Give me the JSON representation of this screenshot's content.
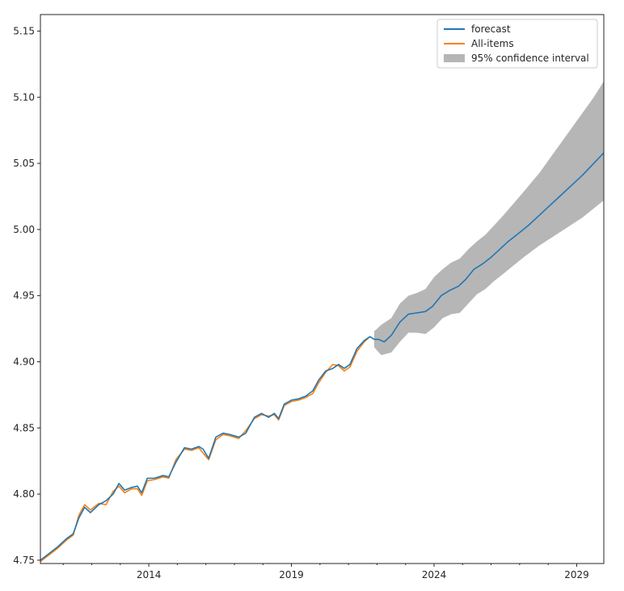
{
  "chart_data": {
    "type": "line",
    "title": "",
    "xlabel": "",
    "ylabel": "",
    "xlim": [
      2010.2,
      2029.95
    ],
    "ylim": [
      4.7475,
      5.1625
    ],
    "x_ticks": [
      {
        "value": 2014,
        "label": "2014"
      },
      {
        "value": 2019,
        "label": "2019"
      },
      {
        "value": 2024,
        "label": "2024"
      },
      {
        "value": 2029,
        "label": "2029"
      }
    ],
    "y_ticks": [
      {
        "value": 4.75,
        "label": "4.75"
      },
      {
        "value": 4.8,
        "label": "4.80"
      },
      {
        "value": 4.85,
        "label": "4.85"
      },
      {
        "value": 4.9,
        "label": "4.90"
      },
      {
        "value": 4.95,
        "label": "4.95"
      },
      {
        "value": 5.0,
        "label": "5.00"
      },
      {
        "value": 5.05,
        "label": "5.05"
      },
      {
        "value": 5.1,
        "label": "5.10"
      },
      {
        "value": 5.15,
        "label": "5.15"
      }
    ],
    "legend_position": "top-right",
    "legend": [
      {
        "label": "forecast",
        "kind": "line",
        "color": "#1f77b4"
      },
      {
        "label": "All-items",
        "kind": "line",
        "color": "#ff7f0e"
      },
      {
        "label": "95% confidence interval",
        "kind": "patch",
        "color": "#a9a9a9"
      }
    ],
    "series": [
      {
        "name": "forecast",
        "color": "#1f77b4",
        "points": [
          [
            2010.2,
            4.75
          ],
          [
            2010.5,
            4.755
          ],
          [
            2010.8,
            4.76
          ],
          [
            2011.1,
            4.766
          ],
          [
            2011.35,
            4.77
          ],
          [
            2011.55,
            4.782
          ],
          [
            2011.75,
            4.79
          ],
          [
            2011.95,
            4.786
          ],
          [
            2012.25,
            4.792
          ],
          [
            2012.5,
            4.795
          ],
          [
            2012.75,
            4.8
          ],
          [
            2012.95,
            4.808
          ],
          [
            2013.15,
            4.803
          ],
          [
            2013.4,
            4.805
          ],
          [
            2013.6,
            4.806
          ],
          [
            2013.75,
            4.801
          ],
          [
            2013.95,
            4.812
          ],
          [
            2014.2,
            4.812
          ],
          [
            2014.5,
            4.814
          ],
          [
            2014.7,
            4.813
          ],
          [
            2014.95,
            4.824
          ],
          [
            2015.25,
            4.835
          ],
          [
            2015.5,
            4.834
          ],
          [
            2015.75,
            4.836
          ],
          [
            2015.9,
            4.834
          ],
          [
            2016.1,
            4.827
          ],
          [
            2016.35,
            4.843
          ],
          [
            2016.6,
            4.846
          ],
          [
            2016.85,
            4.845
          ],
          [
            2017.15,
            4.843
          ],
          [
            2017.4,
            4.846
          ],
          [
            2017.7,
            4.858
          ],
          [
            2017.95,
            4.861
          ],
          [
            2018.2,
            4.858
          ],
          [
            2018.4,
            4.861
          ],
          [
            2018.55,
            4.857
          ],
          [
            2018.75,
            4.868
          ],
          [
            2019.0,
            4.871
          ],
          [
            2019.25,
            4.872
          ],
          [
            2019.5,
            4.874
          ],
          [
            2019.75,
            4.878
          ],
          [
            2019.95,
            4.886
          ],
          [
            2020.2,
            4.893
          ],
          [
            2020.45,
            4.895
          ],
          [
            2020.65,
            4.898
          ],
          [
            2020.85,
            4.895
          ],
          [
            2021.05,
            4.898
          ],
          [
            2021.3,
            4.91
          ],
          [
            2021.55,
            4.916
          ],
          [
            2021.75,
            4.919
          ],
          [
            2021.9,
            4.917
          ],
          [
            2022.05,
            4.917
          ],
          [
            2022.25,
            4.915
          ],
          [
            2022.5,
            4.92
          ],
          [
            2022.8,
            4.93
          ],
          [
            2023.1,
            4.936
          ],
          [
            2023.4,
            4.937
          ],
          [
            2023.7,
            4.938
          ],
          [
            2023.95,
            4.942
          ],
          [
            2024.25,
            4.95
          ],
          [
            2024.55,
            4.954
          ],
          [
            2024.85,
            4.957
          ],
          [
            2025.1,
            4.962
          ],
          [
            2025.4,
            4.97
          ],
          [
            2025.7,
            4.974
          ],
          [
            2026.0,
            4.979
          ],
          [
            2026.3,
            4.985
          ],
          [
            2026.6,
            4.991
          ],
          [
            2026.9,
            4.996
          ],
          [
            2027.3,
            5.003
          ],
          [
            2027.7,
            5.011
          ],
          [
            2028.0,
            5.017
          ],
          [
            2028.4,
            5.025
          ],
          [
            2028.8,
            5.033
          ],
          [
            2029.2,
            5.041
          ],
          [
            2029.6,
            5.05
          ],
          [
            2029.95,
            5.058
          ]
        ]
      },
      {
        "name": "All-items",
        "color": "#ff7f0e",
        "points": [
          [
            2010.2,
            4.749
          ],
          [
            2010.5,
            4.754
          ],
          [
            2010.8,
            4.759
          ],
          [
            2011.1,
            4.765
          ],
          [
            2011.35,
            4.769
          ],
          [
            2011.55,
            4.784
          ],
          [
            2011.75,
            4.792
          ],
          [
            2011.95,
            4.788
          ],
          [
            2012.25,
            4.793
          ],
          [
            2012.5,
            4.792
          ],
          [
            2012.75,
            4.802
          ],
          [
            2012.95,
            4.806
          ],
          [
            2013.15,
            4.801
          ],
          [
            2013.4,
            4.804
          ],
          [
            2013.6,
            4.804
          ],
          [
            2013.75,
            4.799
          ],
          [
            2013.95,
            4.81
          ],
          [
            2014.2,
            4.811
          ],
          [
            2014.5,
            4.813
          ],
          [
            2014.7,
            4.812
          ],
          [
            2014.95,
            4.826
          ],
          [
            2015.25,
            4.834
          ],
          [
            2015.5,
            4.833
          ],
          [
            2015.75,
            4.835
          ],
          [
            2015.9,
            4.831
          ],
          [
            2016.1,
            4.826
          ],
          [
            2016.35,
            4.841
          ],
          [
            2016.6,
            4.845
          ],
          [
            2016.85,
            4.844
          ],
          [
            2017.15,
            4.842
          ],
          [
            2017.4,
            4.848
          ],
          [
            2017.7,
            4.857
          ],
          [
            2017.95,
            4.86
          ],
          [
            2018.2,
            4.859
          ],
          [
            2018.4,
            4.86
          ],
          [
            2018.55,
            4.856
          ],
          [
            2018.75,
            4.867
          ],
          [
            2019.0,
            4.87
          ],
          [
            2019.25,
            4.871
          ],
          [
            2019.5,
            4.873
          ],
          [
            2019.75,
            4.876
          ],
          [
            2019.95,
            4.884
          ],
          [
            2020.2,
            4.892
          ],
          [
            2020.45,
            4.898
          ],
          [
            2020.65,
            4.897
          ],
          [
            2020.85,
            4.893
          ],
          [
            2021.05,
            4.896
          ],
          [
            2021.3,
            4.908
          ],
          [
            2021.55,
            4.915
          ],
          [
            2021.75,
            4.919
          ]
        ]
      }
    ],
    "confidence_interval": {
      "label": "95% confidence interval",
      "color": "#a9a9a9",
      "upper": [
        [
          2021.9,
          4.923
        ],
        [
          2022.15,
          4.928
        ],
        [
          2022.5,
          4.933
        ],
        [
          2022.8,
          4.944
        ],
        [
          2023.1,
          4.95
        ],
        [
          2023.4,
          4.952
        ],
        [
          2023.7,
          4.955
        ],
        [
          2024.0,
          4.964
        ],
        [
          2024.3,
          4.97
        ],
        [
          2024.6,
          4.975
        ],
        [
          2024.9,
          4.978
        ],
        [
          2025.2,
          4.985
        ],
        [
          2025.5,
          4.991
        ],
        [
          2025.8,
          4.996
        ],
        [
          2026.1,
          5.003
        ],
        [
          2026.4,
          5.01
        ],
        [
          2026.8,
          5.02
        ],
        [
          2027.2,
          5.03
        ],
        [
          2027.7,
          5.043
        ],
        [
          2028.2,
          5.058
        ],
        [
          2028.7,
          5.073
        ],
        [
          2029.2,
          5.088
        ],
        [
          2029.6,
          5.1
        ],
        [
          2029.95,
          5.112
        ]
      ],
      "lower": [
        [
          2021.9,
          4.911
        ],
        [
          2022.15,
          4.905
        ],
        [
          2022.5,
          4.907
        ],
        [
          2022.8,
          4.915
        ],
        [
          2023.1,
          4.922
        ],
        [
          2023.4,
          4.922
        ],
        [
          2023.7,
          4.921
        ],
        [
          2024.0,
          4.926
        ],
        [
          2024.3,
          4.933
        ],
        [
          2024.6,
          4.936
        ],
        [
          2024.9,
          4.937
        ],
        [
          2025.2,
          4.944
        ],
        [
          2025.5,
          4.951
        ],
        [
          2025.8,
          4.955
        ],
        [
          2026.1,
          4.961
        ],
        [
          2026.4,
          4.966
        ],
        [
          2026.8,
          4.973
        ],
        [
          2027.2,
          4.98
        ],
        [
          2027.7,
          4.988
        ],
        [
          2028.2,
          4.995
        ],
        [
          2028.7,
          5.002
        ],
        [
          2029.2,
          5.009
        ],
        [
          2029.6,
          5.016
        ],
        [
          2029.95,
          5.022
        ]
      ]
    }
  }
}
